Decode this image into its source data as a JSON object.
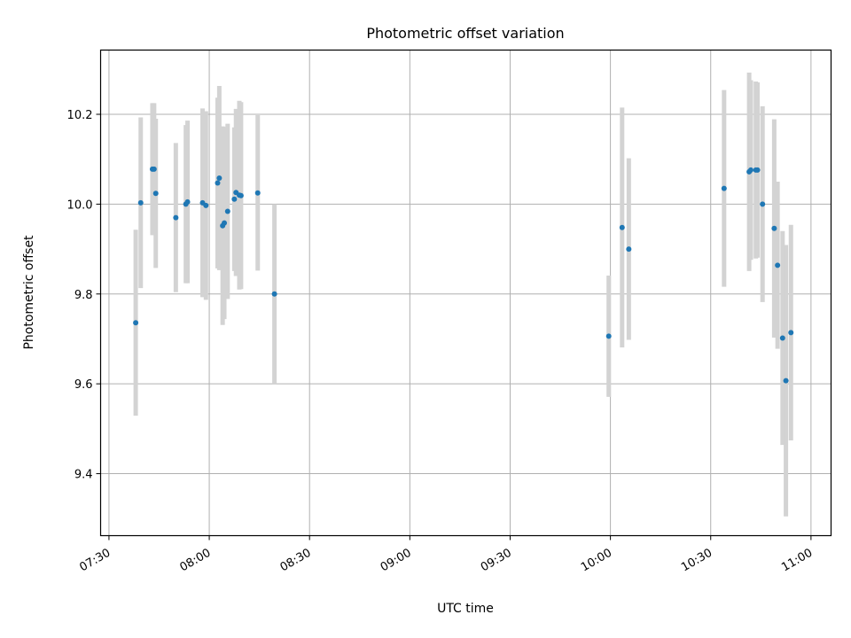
{
  "chart_data": {
    "type": "scatter",
    "title": "Photometric offset variation",
    "xlabel": "UTC time",
    "ylabel": "Photometric offset",
    "x_ticks": [
      "07:30",
      "08:00",
      "08:30",
      "09:00",
      "09:30",
      "10:00",
      "10:30",
      "11:00"
    ],
    "y_ticks": [
      9.4,
      9.6,
      9.8,
      10.0,
      10.2
    ],
    "xlim": [
      "07:27.5",
      "11:06"
    ],
    "ylim": [
      9.262,
      10.343
    ],
    "grid": true,
    "marker_color": "#1f77b4",
    "errorbar_color": "#d3d3d3",
    "points": [
      {
        "x": "07:38",
        "y": 9.736,
        "err": 0.207
      },
      {
        "x": "07:39.5",
        "y": 10.003,
        "err": 0.19
      },
      {
        "x": "07:43",
        "y": 10.078,
        "err": 0.147
      },
      {
        "x": "07:43.5",
        "y": 10.078,
        "err": 0.147
      },
      {
        "x": "07:44",
        "y": 10.024,
        "err": 0.166
      },
      {
        "x": "07:50",
        "y": 9.97,
        "err": 0.166
      },
      {
        "x": "07:53",
        "y": 10.0,
        "err": 0.176
      },
      {
        "x": "07:53.5",
        "y": 10.005,
        "err": 0.181
      },
      {
        "x": "07:58",
        "y": 10.003,
        "err": 0.21
      },
      {
        "x": "07:59",
        "y": 9.997,
        "err": 0.21
      },
      {
        "x": "08:02.5",
        "y": 10.047,
        "err": 0.19
      },
      {
        "x": "08:03",
        "y": 10.058,
        "err": 0.205
      },
      {
        "x": "08:04",
        "y": 9.952,
        "err": 0.221
      },
      {
        "x": "08:04.5",
        "y": 9.958,
        "err": 0.214
      },
      {
        "x": "08:05.5",
        "y": 9.984,
        "err": 0.195
      },
      {
        "x": "08:07.5",
        "y": 10.011,
        "err": 0.16
      },
      {
        "x": "08:08",
        "y": 10.026,
        "err": 0.186
      },
      {
        "x": "08:09",
        "y": 10.02,
        "err": 0.21
      },
      {
        "x": "08:09.5",
        "y": 10.019,
        "err": 0.208
      },
      {
        "x": "08:14.5",
        "y": 10.025,
        "err": 0.173
      },
      {
        "x": "08:19.5",
        "y": 9.8,
        "err": 0.2
      },
      {
        "x": "09:59.5",
        "y": 9.706,
        "err": 0.135
      },
      {
        "x": "10:03.5",
        "y": 9.948,
        "err": 0.267
      },
      {
        "x": "10:05.5",
        "y": 9.9,
        "err": 0.202
      },
      {
        "x": "10:34",
        "y": 10.035,
        "err": 0.219
      },
      {
        "x": "10:41.5",
        "y": 10.072,
        "err": 0.221
      },
      {
        "x": "10:42",
        "y": 10.076,
        "err": 0.2
      },
      {
        "x": "10:43.5",
        "y": 10.076,
        "err": 0.197
      },
      {
        "x": "10:44",
        "y": 10.076,
        "err": 0.195
      },
      {
        "x": "10:45.5",
        "y": 10.0,
        "err": 0.218
      },
      {
        "x": "10:49",
        "y": 9.946,
        "err": 0.243
      },
      {
        "x": "10:50",
        "y": 9.864,
        "err": 0.186
      },
      {
        "x": "10:51.5",
        "y": 9.702,
        "err": 0.238
      },
      {
        "x": "10:52.5",
        "y": 9.607,
        "err": 0.302
      },
      {
        "x": "10:54",
        "y": 9.714,
        "err": 0.24
      }
    ]
  }
}
